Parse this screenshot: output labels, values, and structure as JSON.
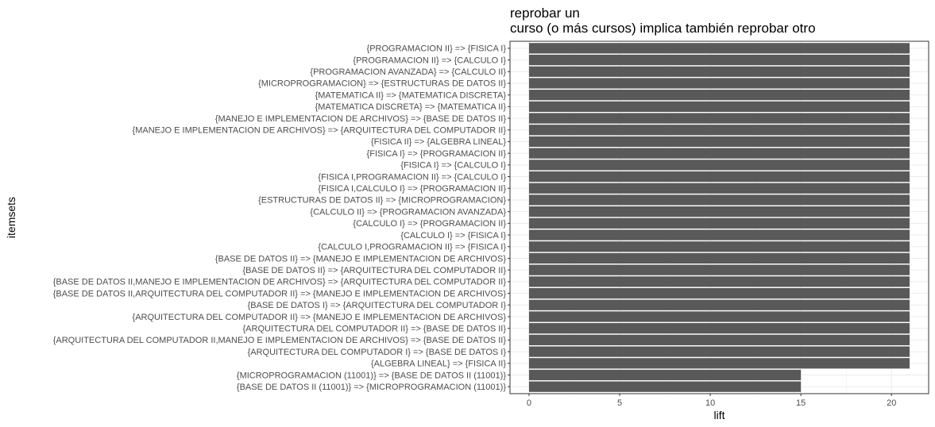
{
  "chart_data": {
    "type": "bar",
    "orientation": "horizontal",
    "title": [
      "reprobar un",
      "curso (o más cursos) implica también reprobar otro"
    ],
    "xlabel": "lift",
    "ylabel": "itemsets",
    "xlim": [
      -1.05,
      22.05
    ],
    "xticks": [
      0,
      5,
      10,
      15,
      20
    ],
    "grid": true,
    "theme": "bw",
    "bar_color": "#595959",
    "categories": [
      "{PROGRAMACION II} => {FISICA I}",
      "{PROGRAMACION II} => {CALCULO I}",
      "{PROGRAMACION AVANZADA} => {CALCULO II}",
      "{MICROPROGRAMACION} => {ESTRUCTURAS DE DATOS II}",
      "{MATEMATICA II} => {MATEMATICA DISCRETA}",
      "{MATEMATICA DISCRETA} => {MATEMATICA II}",
      "{MANEJO E IMPLEMENTACION DE ARCHIVOS} => {BASE DE DATOS II}",
      "{MANEJO E IMPLEMENTACION DE ARCHIVOS} => {ARQUITECTURA DEL COMPUTADOR II}",
      "{FISICA II} => {ALGEBRA LINEAL}",
      "{FISICA I} => {PROGRAMACION II}",
      "{FISICA I} => {CALCULO I}",
      "{FISICA I,PROGRAMACION II} => {CALCULO I}",
      "{FISICA I,CALCULO I} => {PROGRAMACION II}",
      "{ESTRUCTURAS DE DATOS II} => {MICROPROGRAMACION}",
      "{CALCULO II} => {PROGRAMACION AVANZADA}",
      "{CALCULO I} => {PROGRAMACION II}",
      "{CALCULO I} => {FISICA I}",
      "{CALCULO I,PROGRAMACION II} => {FISICA I}",
      "{BASE DE DATOS II} => {MANEJO E IMPLEMENTACION DE ARCHIVOS}",
      "{BASE DE DATOS II} => {ARQUITECTURA DEL COMPUTADOR II}",
      "{BASE DE DATOS II,MANEJO E IMPLEMENTACION DE ARCHIVOS} => {ARQUITECTURA DEL COMPUTADOR II}",
      "{BASE DE DATOS II,ARQUITECTURA DEL COMPUTADOR II} => {MANEJO E IMPLEMENTACION DE ARCHIVOS}",
      "{BASE DE DATOS I} => {ARQUITECTURA DEL COMPUTADOR I}",
      "{ARQUITECTURA DEL COMPUTADOR II} => {MANEJO E IMPLEMENTACION DE ARCHIVOS}",
      "{ARQUITECTURA DEL COMPUTADOR II} => {BASE DE DATOS II}",
      "{ARQUITECTURA DEL COMPUTADOR II,MANEJO E IMPLEMENTACION DE ARCHIVOS} => {BASE DE DATOS II}",
      "{ARQUITECTURA DEL COMPUTADOR I} => {BASE DE DATOS I}",
      "{ALGEBRA LINEAL} => {FISICA II}",
      "{MICROPROGRAMACION (11001)} => {BASE DE DATOS II (11001)}",
      "{BASE DE DATOS II (11001)} => {MICROPROGRAMACION (11001)}"
    ],
    "values": [
      21,
      21,
      21,
      21,
      21,
      21,
      21,
      21,
      21,
      21,
      21,
      21,
      21,
      21,
      21,
      21,
      21,
      21,
      21,
      21,
      21,
      21,
      21,
      21,
      21,
      21,
      21,
      21,
      15,
      15
    ]
  }
}
